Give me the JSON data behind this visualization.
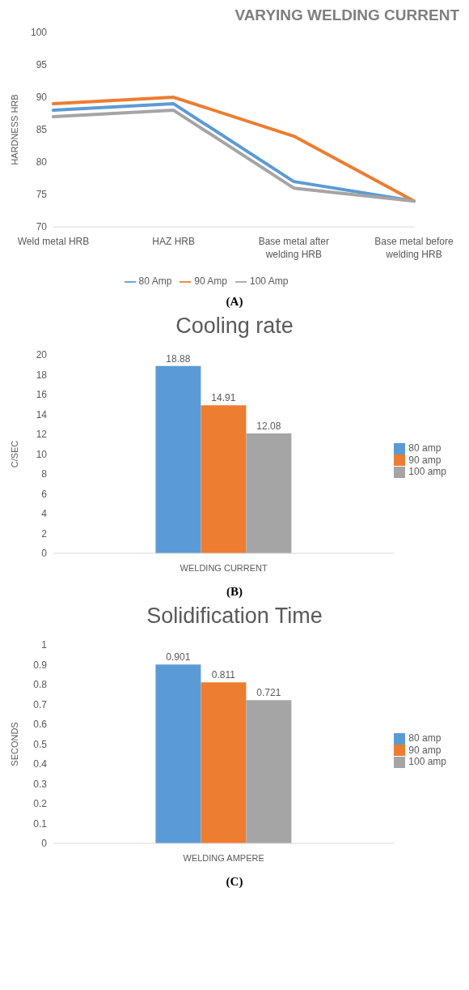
{
  "chart_data": [
    {
      "type": "line",
      "title": "VARYING WELDING CURRENT",
      "ylabel": "HARDNESS HRB",
      "categories": [
        "Weld metal HRB",
        "HAZ HRB",
        "Base metal after welding HRB",
        "Base metal before welding HRB"
      ],
      "series": [
        {
          "name": "80 Amp",
          "color": "#5b9bd5",
          "values": [
            88,
            89,
            77,
            74
          ]
        },
        {
          "name": "90 Amp",
          "color": "#ed7d31",
          "values": [
            89,
            90,
            84,
            74
          ]
        },
        {
          "name": "100 Amp",
          "color": "#a5a5a5",
          "values": [
            87,
            88,
            76,
            74
          ]
        }
      ],
      "ylim": [
        70,
        100
      ],
      "yticks": [
        70,
        75,
        80,
        85,
        90,
        95,
        100
      ],
      "grid": false,
      "legend": "bottom",
      "marker": "none",
      "line_style": "solid",
      "annotations": [
        "(A)"
      ]
    },
    {
      "type": "bar",
      "title": "Cooling rate",
      "ylabel": "C/SEC",
      "xlabel": "WELDING CURRENT",
      "categories": [
        null
      ],
      "series": [
        {
          "name": "80 amp",
          "color": "#5b9bd5",
          "values": [
            18.88
          ]
        },
        {
          "name": "90 amp",
          "color": "#ed7d31",
          "values": [
            14.91
          ]
        },
        {
          "name": "100 amp",
          "color": "#a5a5a5",
          "values": [
            12.08
          ]
        }
      ],
      "ylim": [
        0,
        20
      ],
      "yticks": [
        0,
        2,
        4,
        6,
        8,
        10,
        12,
        14,
        16,
        18,
        20
      ],
      "grid": false,
      "legend": "right",
      "data_labels": true,
      "annotations": [
        "(B)"
      ]
    },
    {
      "type": "bar",
      "title": "Solidification Time",
      "ylabel": "SECONDS",
      "xlabel": "WELDING AMPERE",
      "categories": [
        null
      ],
      "series": [
        {
          "name": "80 amp",
          "color": "#5b9bd5",
          "values": [
            0.901
          ]
        },
        {
          "name": "90 amp",
          "color": "#ed7d31",
          "values": [
            0.811
          ]
        },
        {
          "name": "100 amp",
          "color": "#a5a5a5",
          "values": [
            0.721
          ]
        }
      ],
      "ylim": [
        0,
        1
      ],
      "yticks": [
        0,
        0.1,
        0.2,
        0.3,
        0.4,
        0.5,
        0.6,
        0.7,
        0.8,
        0.9,
        1
      ],
      "grid": false,
      "legend": "right",
      "data_labels": true,
      "annotations": [
        "(C)"
      ]
    }
  ]
}
